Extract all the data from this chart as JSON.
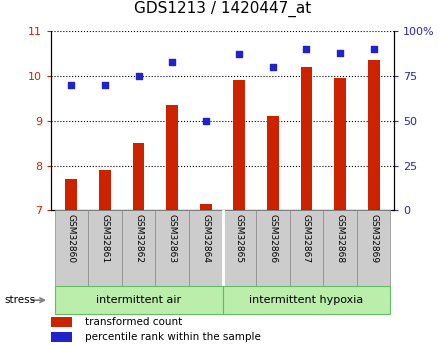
{
  "title": "GDS1213 / 1420447_at",
  "categories": [
    "GSM32860",
    "GSM32861",
    "GSM32862",
    "GSM32863",
    "GSM32864",
    "GSM32865",
    "GSM32866",
    "GSM32867",
    "GSM32868",
    "GSM32869"
  ],
  "bar_values": [
    7.7,
    7.9,
    8.5,
    9.35,
    7.15,
    9.9,
    9.1,
    10.2,
    9.95,
    10.35
  ],
  "scatter_values": [
    70,
    70,
    75,
    83,
    50,
    87,
    80,
    90,
    88,
    90
  ],
  "ylim_left": [
    7,
    11
  ],
  "ylim_right": [
    0,
    100
  ],
  "yticks_left": [
    7,
    8,
    9,
    10,
    11
  ],
  "yticks_right": [
    0,
    25,
    50,
    75,
    100
  ],
  "yticklabels_right": [
    "0",
    "25",
    "50",
    "75",
    "100%"
  ],
  "bar_color": "#cc2200",
  "scatter_color": "#2222cc",
  "group1_label": "intermittent air",
  "group2_label": "intermittent hypoxia",
  "stress_label": "stress",
  "legend1_label": "transformed count",
  "legend2_label": "percentile rank within the sample",
  "group_bg_color": "#bbeeaa",
  "group_border_color": "#66bb66",
  "tick_label_bg": "#cccccc",
  "tick_label_border": "#888888",
  "title_fontsize": 11,
  "bar_width": 0.35,
  "scatter_size": 20,
  "xlim": [
    -0.6,
    9.6
  ]
}
